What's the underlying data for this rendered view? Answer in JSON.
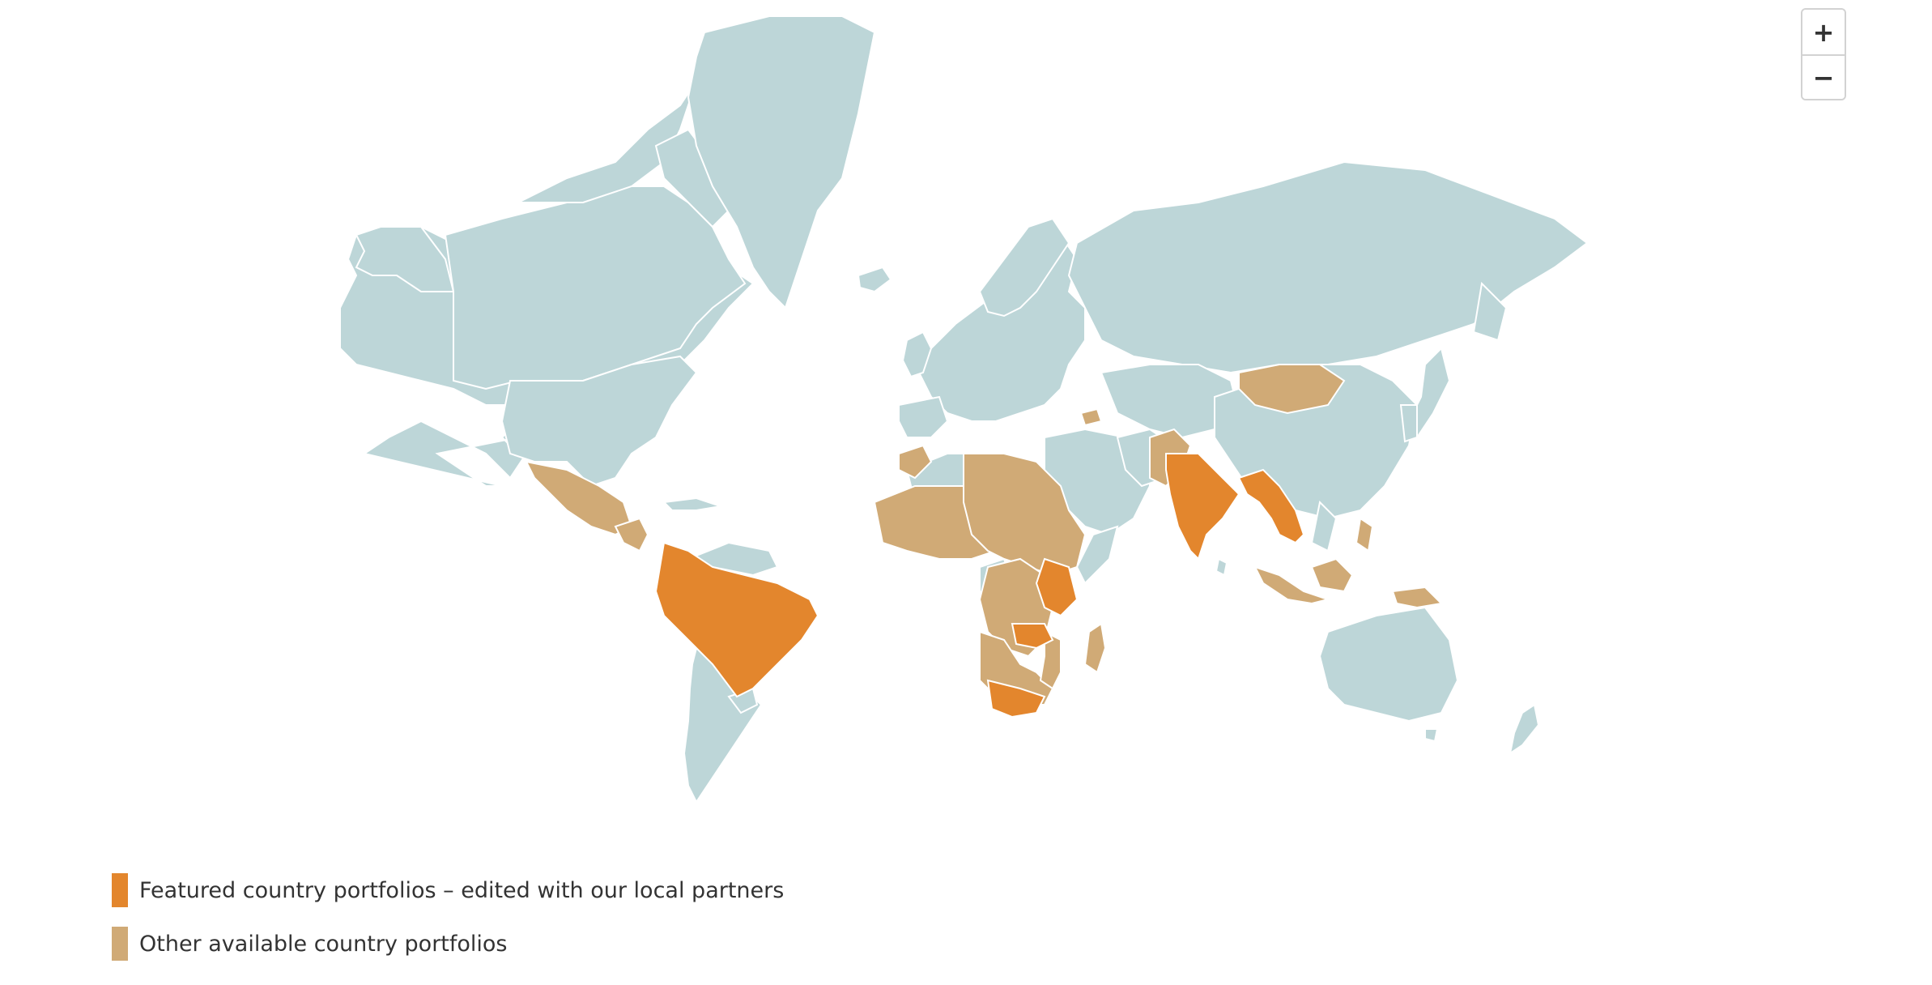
{
  "colors": {
    "ocean": "#ffffff",
    "land_other": "#bdd6d8",
    "featured": "#e3862d",
    "available": "#d0aa76",
    "border": "#ffffff"
  },
  "zoom": {
    "in_label": "+",
    "out_label": "−"
  },
  "legend": {
    "items": [
      {
        "key": "featured",
        "label": "Featured country portfolios – edited with our local partners",
        "color": "#e3862d"
      },
      {
        "key": "available",
        "label": "Other available country portfolios",
        "color": "#d0aa76"
      }
    ]
  },
  "regions": {
    "featured": [
      "Colombia",
      "Peru",
      "Bolivia",
      "Brazil",
      "Paraguay",
      "Kenya",
      "Tanzania",
      "Zambia",
      "Malawi",
      "South Africa",
      "India",
      "Bangladesh",
      "Myanmar",
      "Thailand",
      "Cambodia",
      "Laos"
    ],
    "available": [
      "Mexico",
      "Guatemala",
      "Honduras",
      "Nicaragua",
      "Morocco",
      "Senegal",
      "Mali",
      "Burkina Faso",
      "Ghana",
      "Nigeria",
      "Niger",
      "Chad",
      "Sudan",
      "Egypt",
      "Ethiopia",
      "Uganda",
      "Cameroon",
      "DR Congo",
      "Angola",
      "Namibia",
      "Botswana",
      "Zimbabwe",
      "Mozambique",
      "Madagascar",
      "Afghanistan",
      "Pakistan",
      "Nepal",
      "Mongolia",
      "Indonesia",
      "Philippines",
      "Papua New Guinea",
      "Armenia",
      "Georgia"
    ]
  }
}
